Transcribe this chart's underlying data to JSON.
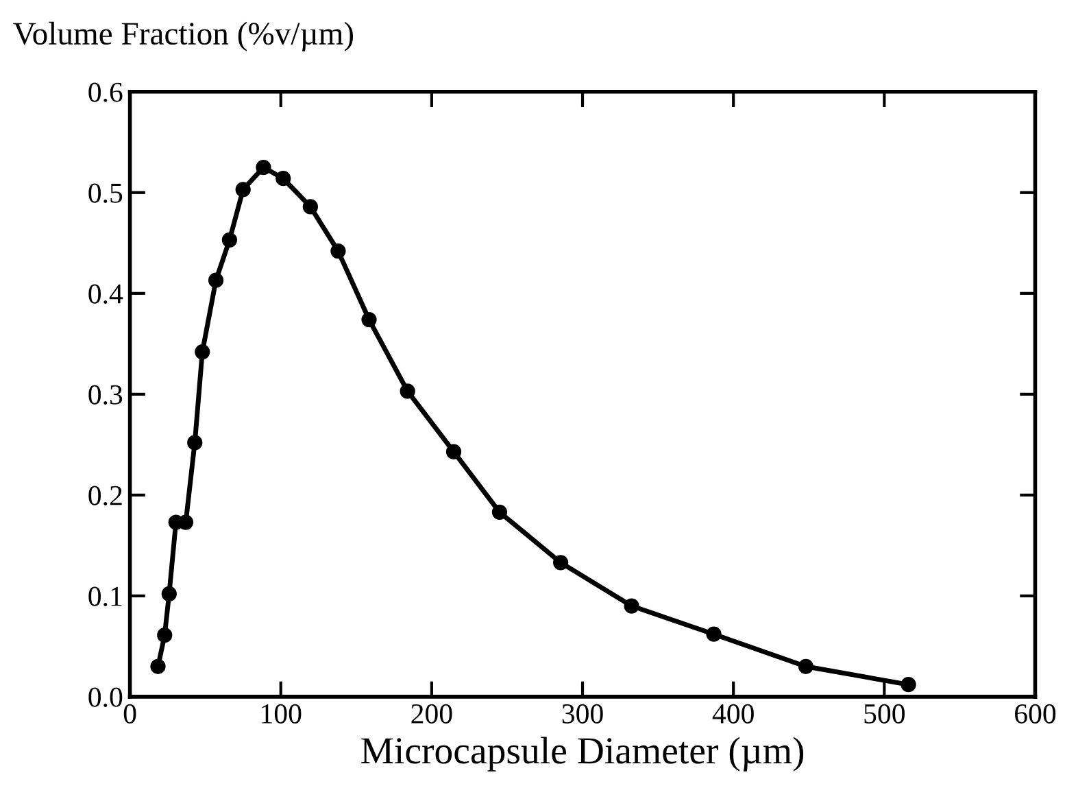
{
  "chart_data": {
    "type": "line",
    "xlabel": "Microcapsule Diameter (µm)",
    "ylabel": "Volume Fraction (%v/µm)",
    "x": [
      18.6,
      23,
      26,
      30.5,
      37,
      43,
      48,
      57,
      66,
      75,
      88.5,
      101.6,
      119.6,
      138,
      158.5,
      184,
      214.6,
      245,
      285.5,
      332.5,
      387,
      448,
      516
    ],
    "series": [
      {
        "color": "#000000",
        "values": [
          0.03,
          0.061,
          0.102,
          0.173,
          0.173,
          0.252,
          0.342,
          0.413,
          0.453,
          0.503,
          0.525,
          0.514,
          0.486,
          0.442,
          0.374,
          0.303,
          0.243,
          0.183,
          0.133,
          0.09,
          0.062,
          0.03,
          0.012
        ]
      }
    ],
    "xlim": [
      0,
      600
    ],
    "xticks": [
      0,
      100,
      200,
      300,
      400,
      500,
      600
    ],
    "ylim": [
      0,
      0.6
    ],
    "yticks": [
      {
        "value": 0,
        "label": "0.0"
      },
      0.1,
      0.2,
      0.3,
      0.4,
      0.5,
      0.6
    ],
    "marker": "circle",
    "line_style": "solid",
    "grid": false,
    "legend": false
  }
}
